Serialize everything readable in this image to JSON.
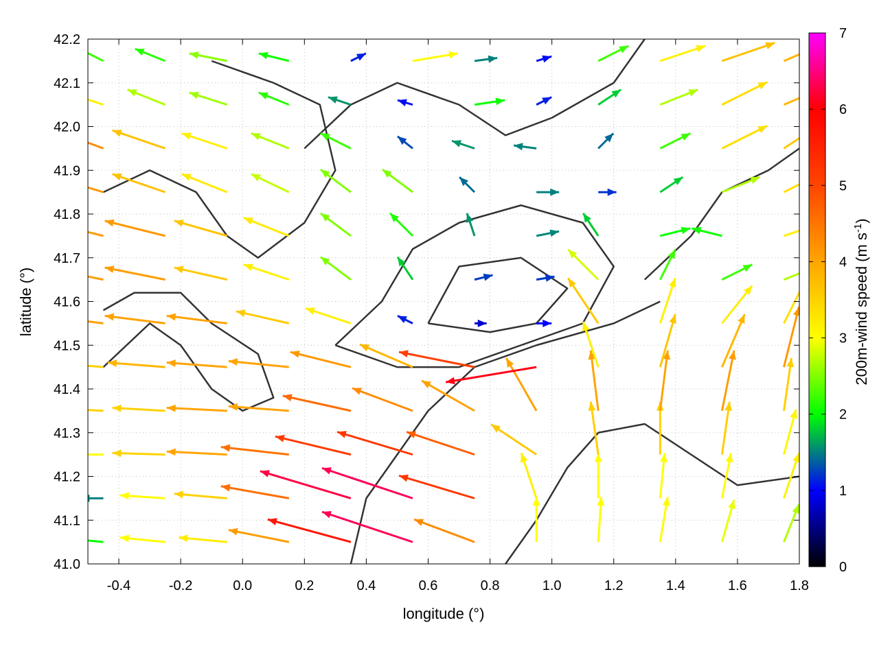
{
  "chart_data": {
    "type": "vector-field",
    "xlabel": "longitude (°)",
    "ylabel": "latitude (°)",
    "xlim": [
      -0.5,
      1.8
    ],
    "ylim": [
      41.0,
      42.2
    ],
    "xticks": [
      "-0.4",
      "-0.2",
      "0.0",
      "0.2",
      "0.4",
      "0.6",
      "0.8",
      "1.0",
      "1.2",
      "1.4",
      "1.6",
      "1.8"
    ],
    "yticks": [
      "41.0",
      "41.1",
      "41.2",
      "41.3",
      "41.4",
      "41.5",
      "41.6",
      "41.7",
      "41.8",
      "41.9",
      "42.0",
      "42.1",
      "42.2"
    ],
    "grid": true,
    "colorbar": {
      "label": "200m-wind speed (m s",
      "label_sup": "-1",
      "label_end": ")",
      "range": [
        0,
        7
      ],
      "ticks": [
        "0",
        "1",
        "2",
        "3",
        "4",
        "5",
        "6",
        "7"
      ],
      "colors": [
        "#000000",
        "#0000ff",
        "#00ff00",
        "#ffff00",
        "#ffa500",
        "#ff4500",
        "#ff0000",
        "#ff00ff"
      ]
    },
    "contour_color": "#333333",
    "vectors": {
      "lon": [
        -0.45,
        -0.25,
        -0.05,
        0.15,
        0.35,
        0.55,
        0.75,
        0.95,
        1.15,
        1.35,
        1.55,
        1.75
      ],
      "lat": [
        41.05,
        41.15,
        41.25,
        41.35,
        41.45,
        41.55,
        41.65,
        41.75,
        41.85,
        41.95,
        42.05,
        42.15
      ],
      "u": [
        [
          -2,
          -3,
          -3.2,
          -4,
          -5.5,
          -6,
          -4,
          0,
          0.2,
          0.5,
          0.8,
          1
        ],
        [
          -1.5,
          -3,
          -3.5,
          -4.5,
          -6,
          -6,
          -5,
          -1,
          0,
          0.3,
          0.6,
          1
        ],
        [
          -3,
          -3.5,
          -4,
          -4.5,
          -5,
          -5,
          -4.5,
          -3,
          -0.5,
          0,
          0.5,
          0.8
        ],
        [
          -3.5,
          -3.5,
          -4,
          -4,
          -4.5,
          -4,
          -3.5,
          -2,
          -0.5,
          0.5,
          0.8,
          0.5
        ],
        [
          -3.5,
          -3.8,
          -4,
          -4,
          -4,
          -3.5,
          -5,
          -6,
          -1,
          1,
          1.5,
          1
        ],
        [
          -4,
          -4,
          -4,
          -3.5,
          -3,
          -1,
          0.8,
          1,
          -2,
          1,
          2,
          1.5
        ],
        [
          -4,
          -4,
          -3.5,
          -3,
          -2,
          -1,
          1.2,
          1.2,
          -2,
          1,
          2,
          2.5
        ],
        [
          -4,
          -4,
          -3.5,
          -3,
          -2,
          -1.5,
          -0.5,
          1.5,
          -1,
          2,
          -2,
          3
        ],
        [
          -4,
          -3.5,
          -3,
          -2.5,
          -2,
          -2,
          -1,
          1.5,
          1.2,
          1.5,
          2.5,
          3
        ],
        [
          -4,
          -3.5,
          -3,
          -2.5,
          -2,
          -1,
          -1.5,
          -1.5,
          1,
          2,
          3,
          3
        ],
        [
          -3,
          -2.5,
          -2.5,
          -2,
          -1.5,
          -1,
          2,
          1,
          1.5,
          2.5,
          3,
          3.5
        ],
        [
          -2,
          -2,
          -2.5,
          -2,
          1,
          3,
          1.5,
          1,
          2,
          3,
          3.5,
          3.5
        ]
      ],
      "v": [
        [
          0.2,
          0.3,
          0.3,
          0.8,
          1.5,
          2,
          1.5,
          3,
          3,
          3,
          2.8,
          2.5
        ],
        [
          0,
          0.2,
          0.3,
          0.8,
          1.8,
          2,
          1.5,
          3,
          3,
          3,
          3,
          3
        ],
        [
          0,
          0.1,
          0.2,
          0.5,
          1.2,
          1.5,
          1.5,
          2,
          3.5,
          3.5,
          3.5,
          3
        ],
        [
          0.2,
          0.2,
          0.2,
          0.3,
          1,
          1.5,
          2,
          3.5,
          4,
          4,
          4,
          3.5
        ],
        [
          0.3,
          0.3,
          0.3,
          0.4,
          1,
          1.5,
          1,
          -1,
          3,
          3.5,
          3.5,
          4
        ],
        [
          0.5,
          0.5,
          0.5,
          0.8,
          1,
          0.5,
          0,
          0,
          3,
          3,
          2.5,
          3
        ],
        [
          0.8,
          0.8,
          0.8,
          1,
          1.5,
          1.5,
          0.3,
          0.2,
          2,
          2,
          1,
          1
        ],
        [
          1,
          1,
          1,
          1.2,
          1.5,
          1.5,
          1.5,
          0.3,
          1.5,
          0.5,
          0.5,
          1
        ],
        [
          1.2,
          1.2,
          1.2,
          1.2,
          1.5,
          1.5,
          1,
          0,
          0,
          1,
          1,
          1.5
        ],
        [
          1.5,
          1.2,
          1,
          1,
          1,
          0.8,
          0.5,
          0.2,
          1,
          1,
          1.5,
          2
        ],
        [
          1,
          1,
          0.8,
          0.8,
          0.5,
          0.3,
          0.3,
          0.5,
          1,
          1,
          1.5,
          1.5
        ],
        [
          1,
          0.8,
          0.5,
          0.5,
          0.5,
          0.5,
          0.2,
          0.3,
          1,
          1,
          1.2,
          1.5
        ]
      ]
    },
    "contours": [
      [
        [
          -0.45,
          41.45
        ],
        [
          -0.3,
          41.55
        ],
        [
          -0.2,
          41.5
        ],
        [
          -0.1,
          41.4
        ],
        [
          0.0,
          41.35
        ],
        [
          0.1,
          41.38
        ],
        [
          0.05,
          41.48
        ],
        [
          -0.1,
          41.55
        ],
        [
          -0.2,
          41.62
        ],
        [
          -0.35,
          41.62
        ],
        [
          -0.45,
          41.58
        ]
      ],
      [
        [
          0.3,
          41.5
        ],
        [
          0.45,
          41.6
        ],
        [
          0.55,
          41.72
        ],
        [
          0.7,
          41.78
        ],
        [
          0.9,
          41.82
        ],
        [
          1.1,
          41.78
        ],
        [
          1.2,
          41.68
        ],
        [
          1.1,
          41.55
        ],
        [
          0.9,
          41.5
        ],
        [
          0.7,
          41.45
        ],
        [
          0.5,
          41.45
        ],
        [
          0.3,
          41.5
        ]
      ],
      [
        [
          0.6,
          41.55
        ],
        [
          0.7,
          41.68
        ],
        [
          0.9,
          41.7
        ],
        [
          1.05,
          41.63
        ],
        [
          0.95,
          41.55
        ],
        [
          0.8,
          41.53
        ],
        [
          0.6,
          41.55
        ]
      ],
      [
        [
          0.35,
          41.0
        ],
        [
          0.4,
          41.15
        ],
        [
          0.5,
          41.25
        ],
        [
          0.6,
          41.35
        ],
        [
          0.75,
          41.45
        ],
        [
          0.95,
          41.5
        ],
        [
          1.2,
          41.55
        ],
        [
          1.35,
          41.6
        ]
      ],
      [
        [
          0.85,
          41.0
        ],
        [
          0.95,
          41.1
        ],
        [
          1.05,
          41.22
        ],
        [
          1.15,
          41.3
        ],
        [
          1.3,
          41.32
        ],
        [
          1.45,
          41.25
        ],
        [
          1.6,
          41.18
        ],
        [
          1.8,
          41.2
        ]
      ],
      [
        [
          0.2,
          41.95
        ],
        [
          0.35,
          42.05
        ],
        [
          0.5,
          42.1
        ],
        [
          0.7,
          42.05
        ],
        [
          0.85,
          41.98
        ],
        [
          1.0,
          42.02
        ],
        [
          1.2,
          42.1
        ],
        [
          1.3,
          42.2
        ]
      ],
      [
        [
          -0.45,
          41.85
        ],
        [
          -0.3,
          41.9
        ],
        [
          -0.15,
          41.85
        ],
        [
          -0.05,
          41.75
        ],
        [
          0.05,
          41.7
        ],
        [
          0.2,
          41.78
        ],
        [
          0.3,
          41.9
        ],
        [
          0.25,
          42.05
        ],
        [
          0.1,
          42.1
        ],
        [
          -0.1,
          42.15
        ]
      ],
      [
        [
          1.3,
          41.65
        ],
        [
          1.45,
          41.75
        ],
        [
          1.55,
          41.85
        ],
        [
          1.7,
          41.9
        ],
        [
          1.8,
          41.95
        ]
      ]
    ]
  }
}
